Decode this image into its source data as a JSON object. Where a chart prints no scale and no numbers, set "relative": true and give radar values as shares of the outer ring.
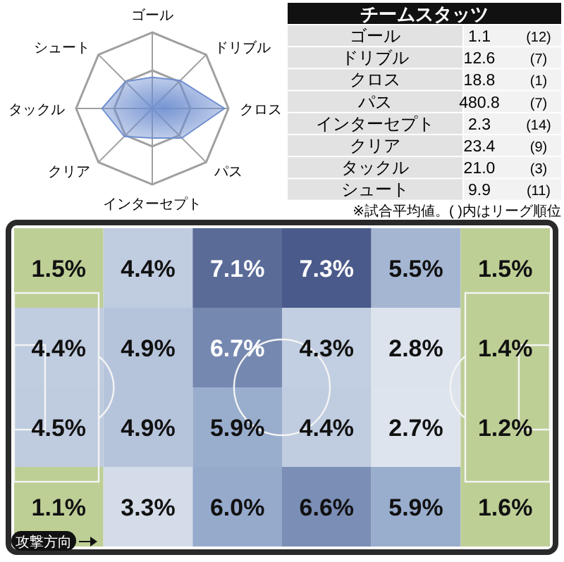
{
  "chart_data": [
    {
      "type": "radar",
      "relative": true,
      "categories": [
        "ゴール",
        "ドリブル",
        "クロス",
        "パス",
        "インターセプト",
        "クリア",
        "タックル",
        "シュート"
      ],
      "series": [
        {
          "color": "#6f8fd0",
          "values": [
            0.41,
            0.52,
            0.95,
            0.55,
            0.39,
            0.52,
            0.66,
            0.5
          ]
        }
      ]
    },
    {
      "type": "other",
      "title": "チームスタッツ",
      "categories": [
        "ゴール",
        "ドリブル",
        "クロス",
        "パス",
        "インターセプト",
        "クリア",
        "タックル",
        "シュート"
      ],
      "series": [
        {
          "values": [
            1.1,
            12.6,
            18.8,
            480.8,
            2.3,
            23.4,
            21.0,
            9.9
          ],
          "value_labels": [
            "1.1",
            "12.6",
            "18.8",
            "480.8",
            "2.3",
            "23.4",
            "21.0",
            "9.9"
          ]
        },
        {
          "values": [
            12,
            7,
            1,
            7,
            14,
            9,
            3,
            11
          ],
          "value_labels": [
            "(12)",
            "(7)",
            "(1)",
            "(7)",
            "(14)",
            "(9)",
            "(3)",
            "(11)"
          ]
        }
      ],
      "annotations": [
        "※試合平均値。( )内はリーグ順位"
      ]
    },
    {
      "type": "heatmap",
      "categories": [
        null,
        null,
        null,
        null,
        null,
        null
      ],
      "y_categories": [
        null,
        null,
        null,
        null
      ],
      "cells": [
        [
          1.5,
          4.4,
          7.1,
          7.3,
          5.5,
          1.5
        ],
        [
          4.4,
          4.9,
          6.7,
          4.3,
          2.8,
          1.4
        ],
        [
          4.5,
          4.9,
          5.9,
          4.4,
          2.7,
          1.2
        ],
        [
          1.1,
          3.3,
          6.0,
          6.6,
          5.9,
          1.6
        ]
      ],
      "cell_labels": [
        [
          "1.5%",
          "4.4%",
          "7.1%",
          "7.3%",
          "5.5%",
          "1.5%"
        ],
        [
          "4.4%",
          "4.9%",
          "6.7%",
          "4.3%",
          "2.8%",
          "1.4%"
        ],
        [
          "4.5%",
          "4.9%",
          "5.9%",
          "4.4%",
          "2.7%",
          "1.2%"
        ],
        [
          "1.1%",
          "3.3%",
          "6.0%",
          "6.6%",
          "5.9%",
          "1.6%"
        ]
      ],
      "annotations": [
        "攻撃方向"
      ]
    }
  ]
}
